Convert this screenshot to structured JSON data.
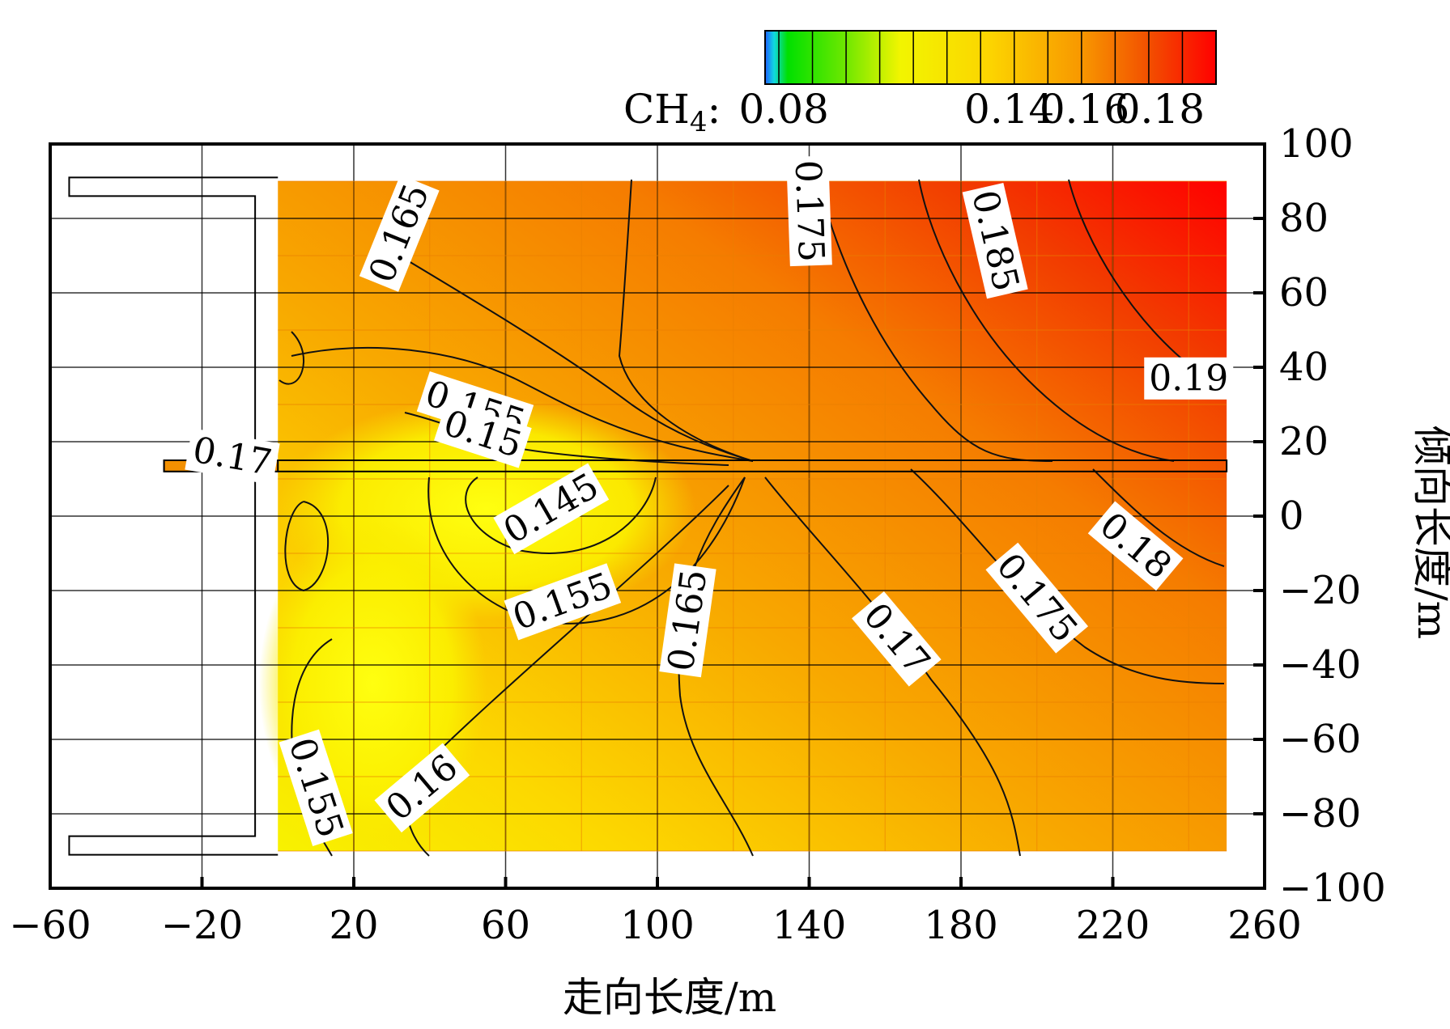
{
  "chart_data": {
    "type": "heatmap",
    "title": "",
    "xlabel": "走向长度/m",
    "ylabel": "倾向长度/m",
    "xlim": [
      -60,
      260
    ],
    "ylim": [
      -100,
      100
    ],
    "x_ticks": [
      -60,
      -20,
      20,
      60,
      100,
      140,
      180,
      220,
      260
    ],
    "y_ticks": [
      100,
      80,
      60,
      40,
      20,
      0,
      -20,
      -40,
      -60,
      -80,
      -100
    ],
    "grid": true,
    "colorbar": {
      "label_main": "CH",
      "label_sub": "4",
      "label_suffix": ":",
      "ticks": [
        0.08,
        0.14,
        0.16,
        0.18
      ],
      "range": [
        0.075,
        0.195
      ],
      "placement": "top"
    },
    "field_extent": {
      "x": [
        0,
        250
      ],
      "y": [
        -90,
        90
      ]
    },
    "contours": [
      {
        "level": "0.165",
        "label_x": 32,
        "label_y": 76,
        "angle": -68
      },
      {
        "level": "0.175",
        "label_x": 140,
        "label_y": 82,
        "angle": 88
      },
      {
        "level": "0.185",
        "label_x": 189,
        "label_y": 74,
        "angle": 77
      },
      {
        "level": "0.19",
        "label_x": 240,
        "label_y": 37,
        "angle": 0
      },
      {
        "level": "0.155",
        "label_x": 52,
        "label_y": 29,
        "angle": 18
      },
      {
        "level": "0.15",
        "label_x": 54,
        "label_y": 22,
        "angle": 18
      },
      {
        "level": "0.17",
        "label_x": -12,
        "label_y": 16,
        "angle": 10
      },
      {
        "level": "0.145",
        "label_x": 72,
        "label_y": 2,
        "angle": -30
      },
      {
        "level": "0.155",
        "label_x": 75,
        "label_y": -23,
        "angle": -20
      },
      {
        "level": "0.165",
        "label_x": 108,
        "label_y": -28,
        "angle": -82
      },
      {
        "level": "0.18",
        "label_x": 226,
        "label_y": -8,
        "angle": 40
      },
      {
        "level": "0.175",
        "label_x": 200,
        "label_y": -22,
        "angle": 50
      },
      {
        "level": "0.17",
        "label_x": 163,
        "label_y": -33,
        "angle": 50
      },
      {
        "level": "0.155",
        "label_x": 10,
        "label_y": -73,
        "angle": 72
      },
      {
        "level": "0.16",
        "label_x": 38,
        "label_y": -73,
        "angle": -40
      }
    ]
  }
}
